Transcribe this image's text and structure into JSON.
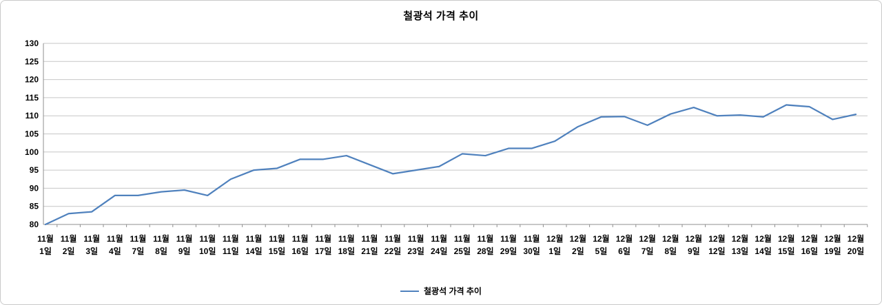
{
  "chart_data": {
    "type": "line",
    "title": "철광석 가격 추이",
    "legend_label": "철광석 가격 추이",
    "legend_position": "bottom-center",
    "series_name": "철광석 가격 추이",
    "categories": [
      "11월 1일",
      "11월 2일",
      "11월 3일",
      "11월 4일",
      "11월 7일",
      "11월 8일",
      "11월 9일",
      "11월 10일",
      "11월 11일",
      "11월 14일",
      "11월 15일",
      "11월 16일",
      "11월 17일",
      "11월 18일",
      "11월 21일",
      "11월 22일",
      "11월 23일",
      "11월 24일",
      "11월 25일",
      "11월 28일",
      "11월 29일",
      "11월 30일",
      "12월 1일",
      "12월 2일",
      "12월 5일",
      "12월 6일",
      "12월 7일",
      "12월 8일",
      "12월 9일",
      "12월 12일",
      "12월 13일",
      "12월 14일",
      "12월 15일",
      "12월 16일",
      "12월 19일",
      "12월 20일"
    ],
    "values": [
      80,
      83,
      83.5,
      88,
      88,
      89,
      89.5,
      88,
      92.5,
      95,
      95.5,
      98,
      98,
      99,
      96.5,
      94,
      95,
      96,
      99.5,
      99,
      101,
      101,
      103,
      107,
      109.7,
      109.8,
      107.4,
      110.5,
      112.3,
      110,
      110.2,
      109.7,
      113,
      112.5,
      109,
      110.4
    ],
    "xlabel": "",
    "ylabel": "",
    "ylim": [
      80,
      130
    ],
    "y_tick_step": 5,
    "y_ticks": [
      80,
      85,
      90,
      95,
      100,
      105,
      110,
      115,
      120,
      125,
      130
    ],
    "grid": true,
    "line_color": "#4F81BD",
    "gridline_color": "#c6c6c6",
    "axis_color": "#8f8f8f",
    "text_color": "#000000"
  }
}
